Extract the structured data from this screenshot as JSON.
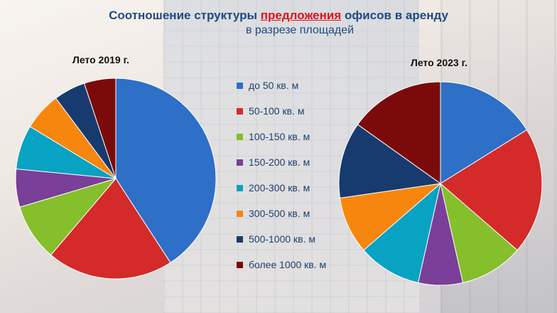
{
  "title": {
    "part1": "Соотношение структуры ",
    "highlight": "предложения",
    "part2": " офисов в аренду",
    "subtitle": "в разрезе площадей"
  },
  "colors": [
    "#2e6fc7",
    "#d42a2a",
    "#85bf2b",
    "#7a3f98",
    "#08a2c2",
    "#f7860f",
    "#173b6f",
    "#7b0b0b"
  ],
  "chart_data": [
    {
      "type": "pie",
      "title": "Лето 2019 г.",
      "categories": [
        "до 50 кв. м",
        "50-100 кв. м",
        "100-150 кв. м",
        "150-200 кв. м",
        "200-300 кв. м",
        "300-500 кв. м",
        "500-1000 кв. м",
        "более 1000 кв. м"
      ],
      "values": [
        40,
        20,
        9,
        6,
        7,
        6,
        5,
        5
      ],
      "legend": "right"
    },
    {
      "type": "pie",
      "title": "Лето 2023 г.",
      "categories": [
        "до 50 кв. м",
        "50-100 кв. м",
        "100-150 кв. м",
        "150-200 кв. м",
        "200-300 кв. м",
        "300-500 кв. м",
        "500-1000 кв. м",
        "более 1000 кв. м"
      ],
      "values": [
        16,
        20,
        10,
        7,
        10,
        9,
        12,
        15
      ],
      "legend": "left"
    }
  ]
}
